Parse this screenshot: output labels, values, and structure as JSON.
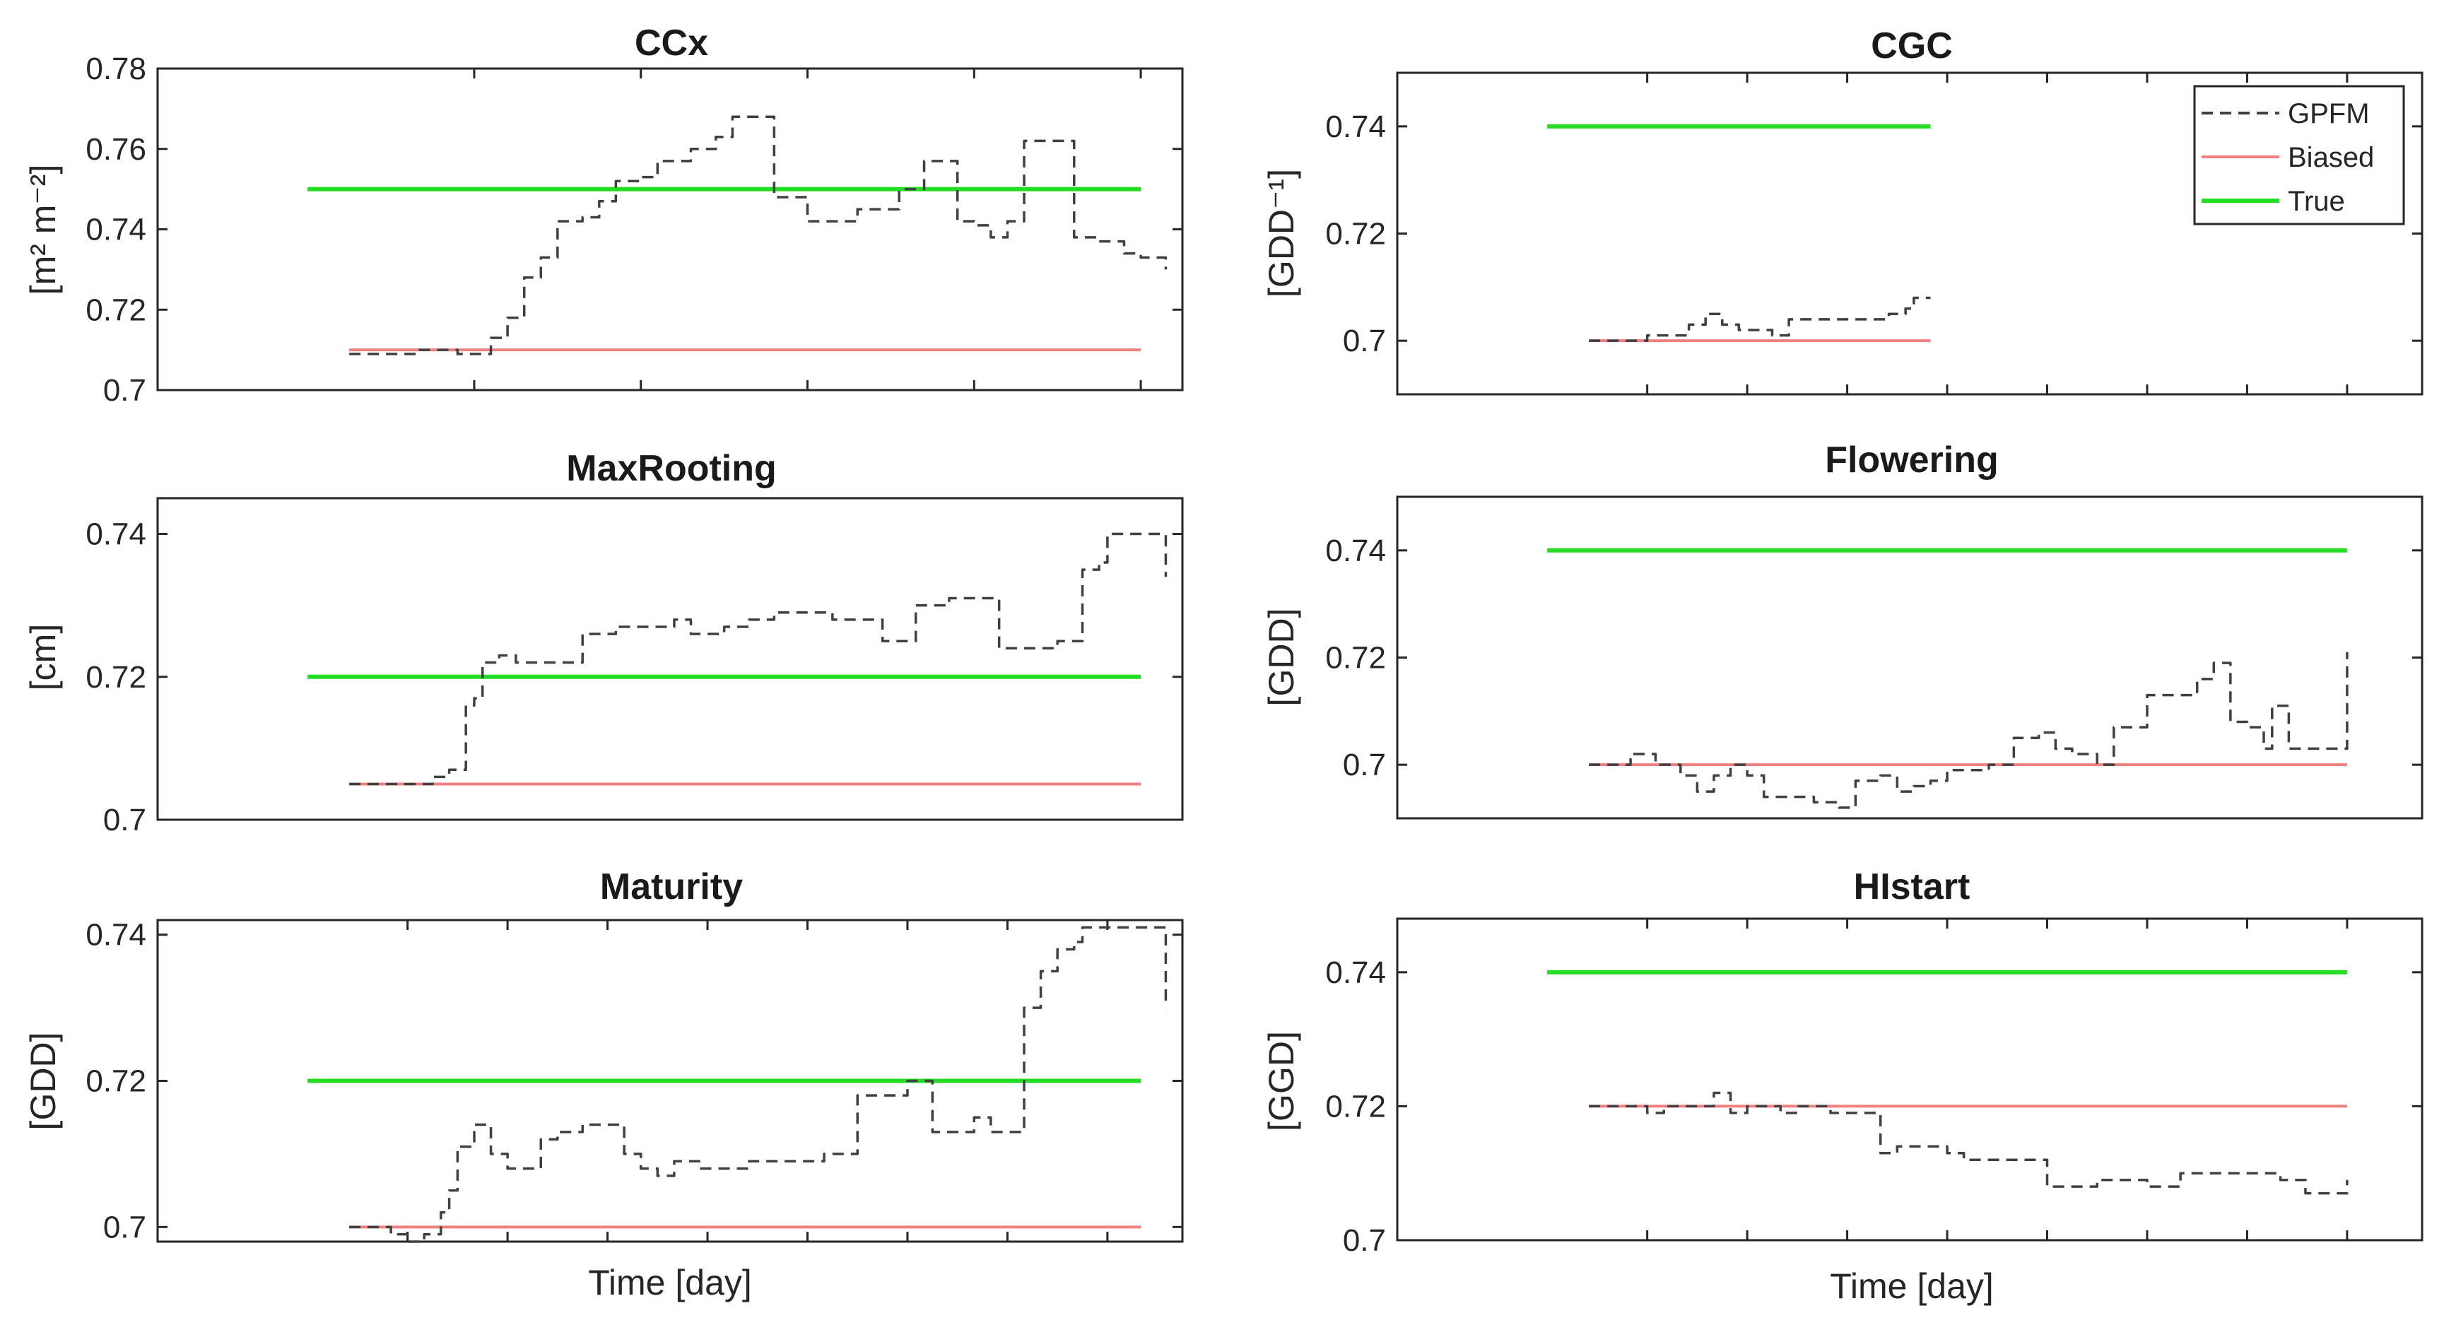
{
  "colors": {
    "gpfm": "#404040",
    "biased": "#f08080",
    "true": "#22dd22",
    "axis": "#262626"
  },
  "chart_data": [
    {
      "type": "line",
      "title": "CCx",
      "ylabel": "[m² m⁻²]",
      "xlabel": "",
      "ylim": [
        0.7,
        0.78
      ],
      "yticks": [
        0.7,
        0.72,
        0.74,
        0.76,
        0.78
      ],
      "ytick_labels": [
        "0.7",
        "0.72",
        "0.74",
        "0.76",
        "0.78"
      ],
      "x_ticks": [
        0.2,
        0.4,
        0.6,
        0.8,
        1.0
      ],
      "series": [
        {
          "name": "GPFM",
          "x": [
            0.05,
            0.1,
            0.13,
            0.15,
            0.18,
            0.2,
            0.22,
            0.24,
            0.26,
            0.28,
            0.3,
            0.33,
            0.35,
            0.37,
            0.4,
            0.42,
            0.44,
            0.46,
            0.49,
            0.51,
            0.54,
            0.56,
            0.58,
            0.6,
            0.63,
            0.66,
            0.69,
            0.71,
            0.74,
            0.76,
            0.78,
            0.8,
            0.82,
            0.84,
            0.86,
            0.88,
            0.9,
            0.92,
            0.95,
            0.98,
            1.0,
            1.03
          ],
          "y": [
            0.709,
            0.709,
            0.71,
            0.71,
            0.709,
            0.709,
            0.713,
            0.718,
            0.728,
            0.733,
            0.742,
            0.743,
            0.747,
            0.752,
            0.753,
            0.757,
            0.757,
            0.76,
            0.763,
            0.768,
            0.768,
            0.748,
            0.748,
            0.742,
            0.742,
            0.745,
            0.745,
            0.75,
            0.757,
            0.757,
            0.742,
            0.741,
            0.738,
            0.742,
            0.762,
            0.762,
            0.762,
            0.738,
            0.737,
            0.734,
            0.733,
            0.73
          ]
        },
        {
          "name": "Biased",
          "x": [
            0.05,
            1.0
          ],
          "y": [
            0.71,
            0.71
          ]
        },
        {
          "name": "True",
          "x": [
            0.0,
            1.0
          ],
          "y": [
            0.75,
            0.75
          ]
        }
      ]
    },
    {
      "type": "line",
      "title": "CGC",
      "ylabel": "[GDD⁻¹]",
      "xlabel": "",
      "ylim": [
        0.69,
        0.75
      ],
      "yticks": [
        0.7,
        0.72,
        0.74
      ],
      "ytick_labels": [
        "0.7",
        "0.72",
        "0.74"
      ],
      "x_ticks": [
        0.12,
        0.24,
        0.36,
        0.48,
        0.6,
        0.72,
        0.84,
        0.96
      ],
      "legend": {
        "entries": [
          "GPFM",
          "Biased",
          "True"
        ],
        "location": "top-right"
      },
      "series": [
        {
          "name": "GPFM",
          "x": [
            0.05,
            0.08,
            0.12,
            0.15,
            0.17,
            0.19,
            0.21,
            0.23,
            0.25,
            0.27,
            0.29,
            0.31,
            0.33,
            0.36,
            0.39,
            0.41,
            0.43,
            0.44,
            0.46
          ],
          "y": [
            0.7,
            0.7,
            0.701,
            0.701,
            0.703,
            0.705,
            0.703,
            0.702,
            0.702,
            0.701,
            0.704,
            0.704,
            0.704,
            0.704,
            0.704,
            0.705,
            0.706,
            0.708,
            0.708
          ]
        },
        {
          "name": "Biased",
          "x": [
            0.05,
            0.46
          ],
          "y": [
            0.7,
            0.7
          ]
        },
        {
          "name": "True",
          "x": [
            0.0,
            0.46
          ],
          "y": [
            0.74,
            0.74
          ]
        }
      ]
    },
    {
      "type": "line",
      "title": "MaxRooting",
      "ylabel": "[cm]",
      "xlabel": "",
      "ylim": [
        0.7,
        0.745
      ],
      "yticks": [
        0.7,
        0.72,
        0.74
      ],
      "ytick_labels": [
        "0.7",
        "0.72",
        "0.74"
      ],
      "x_ticks": [],
      "series": [
        {
          "name": "GPFM",
          "x": [
            0.05,
            0.12,
            0.15,
            0.17,
            0.19,
            0.2,
            0.21,
            0.23,
            0.25,
            0.27,
            0.3,
            0.33,
            0.35,
            0.37,
            0.4,
            0.42,
            0.44,
            0.46,
            0.48,
            0.5,
            0.53,
            0.56,
            0.58,
            0.6,
            0.63,
            0.66,
            0.69,
            0.71,
            0.73,
            0.74,
            0.77,
            0.8,
            0.83,
            0.86,
            0.88,
            0.9,
            0.93,
            0.95,
            0.96,
            0.98,
            1.0,
            1.03
          ],
          "y": [
            0.705,
            0.705,
            0.706,
            0.707,
            0.716,
            0.717,
            0.722,
            0.723,
            0.722,
            0.722,
            0.722,
            0.726,
            0.726,
            0.727,
            0.727,
            0.727,
            0.728,
            0.726,
            0.726,
            0.727,
            0.728,
            0.729,
            0.729,
            0.729,
            0.728,
            0.728,
            0.725,
            0.725,
            0.73,
            0.73,
            0.731,
            0.731,
            0.724,
            0.724,
            0.724,
            0.725,
            0.735,
            0.736,
            0.74,
            0.74,
            0.74,
            0.734
          ]
        },
        {
          "name": "Biased",
          "x": [
            0.05,
            1.0
          ],
          "y": [
            0.705,
            0.705
          ]
        },
        {
          "name": "True",
          "x": [
            0.0,
            1.0
          ],
          "y": [
            0.72,
            0.72
          ]
        }
      ]
    },
    {
      "type": "line",
      "title": "Flowering",
      "ylabel": "[GDD]",
      "xlabel": "",
      "ylim": [
        0.69,
        0.75
      ],
      "yticks": [
        0.7,
        0.72,
        0.74
      ],
      "ytick_labels": [
        "0.7",
        "0.72",
        "0.74"
      ],
      "x_ticks": [],
      "series": [
        {
          "name": "GPFM",
          "x": [
            0.05,
            0.08,
            0.1,
            0.13,
            0.16,
            0.18,
            0.2,
            0.22,
            0.24,
            0.26,
            0.28,
            0.3,
            0.32,
            0.35,
            0.37,
            0.4,
            0.42,
            0.44,
            0.46,
            0.48,
            0.5,
            0.53,
            0.56,
            0.59,
            0.61,
            0.63,
            0.66,
            0.68,
            0.7,
            0.72,
            0.74,
            0.76,
            0.78,
            0.8,
            0.82,
            0.84,
            0.86,
            0.87,
            0.89,
            0.91,
            0.93,
            0.95,
            0.96
          ],
          "y": [
            0.7,
            0.7,
            0.702,
            0.7,
            0.698,
            0.695,
            0.698,
            0.7,
            0.698,
            0.694,
            0.694,
            0.694,
            0.693,
            0.692,
            0.697,
            0.698,
            0.695,
            0.696,
            0.697,
            0.699,
            0.699,
            0.7,
            0.705,
            0.706,
            0.703,
            0.702,
            0.7,
            0.707,
            0.707,
            0.713,
            0.713,
            0.713,
            0.716,
            0.719,
            0.708,
            0.707,
            0.703,
            0.711,
            0.703,
            0.703,
            0.703,
            0.703,
            0.721
          ]
        },
        {
          "name": "Biased",
          "x": [
            0.05,
            0.96
          ],
          "y": [
            0.7,
            0.7
          ]
        },
        {
          "name": "True",
          "x": [
            0.0,
            0.96
          ],
          "y": [
            0.74,
            0.74
          ]
        }
      ]
    },
    {
      "type": "line",
      "title": "Maturity",
      "ylabel": "[GDD]",
      "xlabel": "Time [day]",
      "ylim": [
        0.698,
        0.742
      ],
      "yticks": [
        0.7,
        0.72,
        0.74
      ],
      "ytick_labels": [
        "0.7",
        "0.72",
        "0.74"
      ],
      "x_ticks": [
        0.12,
        0.24,
        0.36,
        0.48,
        0.6,
        0.72,
        0.84,
        0.96
      ],
      "series": [
        {
          "name": "GPFM",
          "x": [
            0.05,
            0.07,
            0.1,
            0.12,
            0.14,
            0.15,
            0.16,
            0.17,
            0.18,
            0.2,
            0.22,
            0.24,
            0.26,
            0.28,
            0.3,
            0.33,
            0.36,
            0.38,
            0.4,
            0.42,
            0.44,
            0.47,
            0.5,
            0.53,
            0.56,
            0.59,
            0.62,
            0.64,
            0.66,
            0.69,
            0.72,
            0.74,
            0.75,
            0.77,
            0.79,
            0.8,
            0.82,
            0.84,
            0.86,
            0.88,
            0.9,
            0.92,
            0.93,
            0.96,
            0.98,
            1.0,
            1.03
          ],
          "y": [
            0.7,
            0.7,
            0.699,
            0.698,
            0.699,
            0.699,
            0.702,
            0.705,
            0.711,
            0.714,
            0.71,
            0.708,
            0.708,
            0.712,
            0.713,
            0.714,
            0.714,
            0.71,
            0.708,
            0.707,
            0.709,
            0.708,
            0.708,
            0.709,
            0.709,
            0.709,
            0.71,
            0.71,
            0.718,
            0.718,
            0.72,
            0.72,
            0.713,
            0.713,
            0.713,
            0.715,
            0.713,
            0.713,
            0.73,
            0.735,
            0.738,
            0.739,
            0.741,
            0.741,
            0.741,
            0.741,
            0.73
          ]
        },
        {
          "name": "Biased",
          "x": [
            0.05,
            1.0
          ],
          "y": [
            0.7,
            0.7
          ]
        },
        {
          "name": "True",
          "x": [
            0.0,
            1.0
          ],
          "y": [
            0.72,
            0.72
          ]
        }
      ]
    },
    {
      "type": "line",
      "title": "HIstart",
      "ylabel": "[GGD]",
      "xlabel": "Time [day]",
      "ylim": [
        0.7,
        0.748
      ],
      "yticks": [
        0.7,
        0.72,
        0.74
      ],
      "ytick_labels": [
        "0.7",
        "0.72",
        "0.74"
      ],
      "x_ticks": [
        0.12,
        0.24,
        0.36,
        0.48,
        0.6,
        0.72,
        0.84,
        0.96
      ],
      "series": [
        {
          "name": "GPFM",
          "x": [
            0.05,
            0.08,
            0.1,
            0.12,
            0.14,
            0.16,
            0.18,
            0.2,
            0.22,
            0.24,
            0.26,
            0.28,
            0.3,
            0.32,
            0.34,
            0.36,
            0.38,
            0.4,
            0.42,
            0.44,
            0.46,
            0.48,
            0.5,
            0.53,
            0.56,
            0.58,
            0.6,
            0.63,
            0.66,
            0.69,
            0.72,
            0.74,
            0.76,
            0.78,
            0.8,
            0.82,
            0.84,
            0.86,
            0.88,
            0.91,
            0.93,
            0.96
          ],
          "y": [
            0.72,
            0.72,
            0.72,
            0.719,
            0.72,
            0.72,
            0.72,
            0.722,
            0.719,
            0.72,
            0.72,
            0.719,
            0.72,
            0.72,
            0.719,
            0.719,
            0.719,
            0.713,
            0.714,
            0.714,
            0.714,
            0.713,
            0.712,
            0.712,
            0.712,
            0.712,
            0.708,
            0.708,
            0.709,
            0.709,
            0.708,
            0.708,
            0.71,
            0.71,
            0.71,
            0.71,
            0.71,
            0.71,
            0.709,
            0.707,
            0.707,
            0.709
          ]
        },
        {
          "name": "Biased",
          "x": [
            0.05,
            0.96
          ],
          "y": [
            0.72,
            0.72
          ]
        },
        {
          "name": "True",
          "x": [
            0.0,
            0.96
          ],
          "y": [
            0.74,
            0.74
          ]
        }
      ]
    }
  ]
}
